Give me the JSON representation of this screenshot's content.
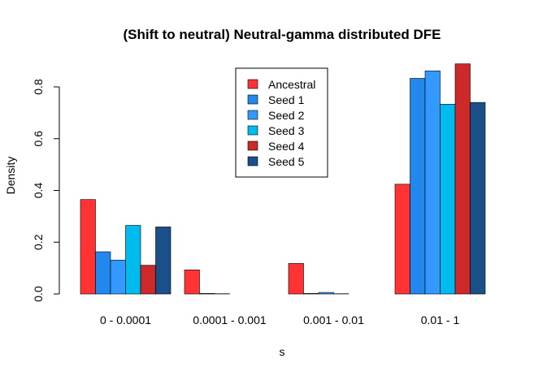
{
  "chart_data": {
    "type": "bar",
    "title": "(Shift to neutral) Neutral-gamma distributed DFE",
    "xlabel": "s",
    "ylabel": "Density",
    "categories": [
      "0 - 0.0001",
      "0.0001 - 0.001",
      "0.001 - 0.01",
      "0.01 - 1"
    ],
    "ylim": [
      0,
      0.9
    ],
    "yticks": [
      "0.0",
      "0.2",
      "0.4",
      "0.6",
      "0.8"
    ],
    "legend_position": "top-center",
    "series": [
      {
        "name": "Ancestral",
        "color": "#FF3333",
        "values": [
          0.365,
          0.093,
          0.118,
          0.424
        ]
      },
      {
        "name": "Seed 1",
        "color": "#2288EE",
        "values": [
          0.163,
          0.002,
          0.002,
          0.833
        ]
      },
      {
        "name": "Seed 2",
        "color": "#3399FF",
        "values": [
          0.131,
          0.001,
          0.006,
          0.862
        ]
      },
      {
        "name": "Seed 3",
        "color": "#00BBEE",
        "values": [
          0.265,
          0.0,
          0.001,
          0.733
        ]
      },
      {
        "name": "Seed 4",
        "color": "#CC2A2A",
        "values": [
          0.111,
          0.0,
          0.0,
          0.889
        ]
      },
      {
        "name": "Seed 5",
        "color": "#1A4F8A",
        "values": [
          0.259,
          0.0,
          0.0,
          0.74
        ]
      }
    ]
  }
}
